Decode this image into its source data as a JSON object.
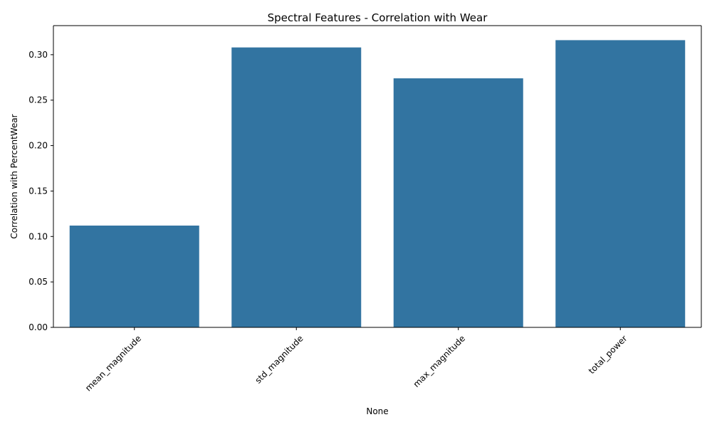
{
  "chart_data": {
    "type": "bar",
    "title": "Spectral Features - Correlation with Wear",
    "xlabel": "None",
    "ylabel": "Correlation with PercentWear",
    "categories": [
      "mean_magnitude",
      "std_magnitude",
      "max_magnitude",
      "total_power"
    ],
    "values": [
      0.112,
      0.308,
      0.274,
      0.316
    ],
    "ylim": [
      0,
      0.332
    ],
    "yticks": [
      0.0,
      0.05,
      0.1,
      0.15,
      0.2,
      0.25,
      0.3
    ],
    "ytick_labels": [
      "0.00",
      "0.05",
      "0.10",
      "0.15",
      "0.20",
      "0.25",
      "0.30"
    ],
    "xtick_rotation": 45,
    "grid": false,
    "legend": "none",
    "bar_color": "#3274a1"
  }
}
